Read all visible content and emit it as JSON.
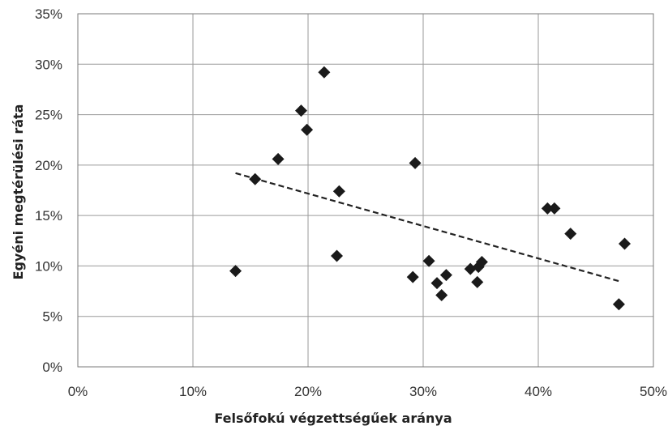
{
  "chart_data": {
    "type": "scatter",
    "xlabel": "Felsőfokú végzettségűek aránya",
    "ylabel": "Egyéni megtérülési ráta",
    "xlim": [
      0,
      0.5
    ],
    "ylim": [
      0,
      0.35
    ],
    "x_ticks": [
      {
        "value": 0,
        "label": "0%"
      },
      {
        "value": 0.1,
        "label": "10%"
      },
      {
        "value": 0.2,
        "label": "20%"
      },
      {
        "value": 0.3,
        "label": "30%"
      },
      {
        "value": 0.4,
        "label": "40%"
      },
      {
        "value": 0.5,
        "label": "50%"
      }
    ],
    "y_ticks": [
      {
        "value": 0,
        "label": "0%"
      },
      {
        "value": 0.05,
        "label": "5%"
      },
      {
        "value": 0.1,
        "label": "10%"
      },
      {
        "value": 0.15,
        "label": "15%"
      },
      {
        "value": 0.2,
        "label": "20%"
      },
      {
        "value": 0.25,
        "label": "25%"
      },
      {
        "value": 0.3,
        "label": "30%"
      },
      {
        "value": 0.35,
        "label": "35%"
      }
    ],
    "grid": true,
    "legend": "none",
    "marker": "diamond",
    "marker_color": "#1a1a1a",
    "points": [
      {
        "x": 0.137,
        "y": 0.095
      },
      {
        "x": 0.154,
        "y": 0.186
      },
      {
        "x": 0.174,
        "y": 0.206
      },
      {
        "x": 0.194,
        "y": 0.254
      },
      {
        "x": 0.199,
        "y": 0.235
      },
      {
        "x": 0.214,
        "y": 0.292
      },
      {
        "x": 0.225,
        "y": 0.11
      },
      {
        "x": 0.227,
        "y": 0.174
      },
      {
        "x": 0.291,
        "y": 0.089
      },
      {
        "x": 0.293,
        "y": 0.202
      },
      {
        "x": 0.305,
        "y": 0.105
      },
      {
        "x": 0.312,
        "y": 0.083
      },
      {
        "x": 0.316,
        "y": 0.071
      },
      {
        "x": 0.32,
        "y": 0.091
      },
      {
        "x": 0.341,
        "y": 0.097
      },
      {
        "x": 0.347,
        "y": 0.084
      },
      {
        "x": 0.348,
        "y": 0.099
      },
      {
        "x": 0.351,
        "y": 0.104
      },
      {
        "x": 0.408,
        "y": 0.157
      },
      {
        "x": 0.414,
        "y": 0.157
      },
      {
        "x": 0.428,
        "y": 0.132
      },
      {
        "x": 0.47,
        "y": 0.062
      },
      {
        "x": 0.475,
        "y": 0.122
      }
    ],
    "trendline": {
      "style": "dashed",
      "color": "#222222",
      "from": {
        "x": 0.137,
        "y": 0.192
      },
      "to": {
        "x": 0.47,
        "y": 0.085
      }
    }
  }
}
